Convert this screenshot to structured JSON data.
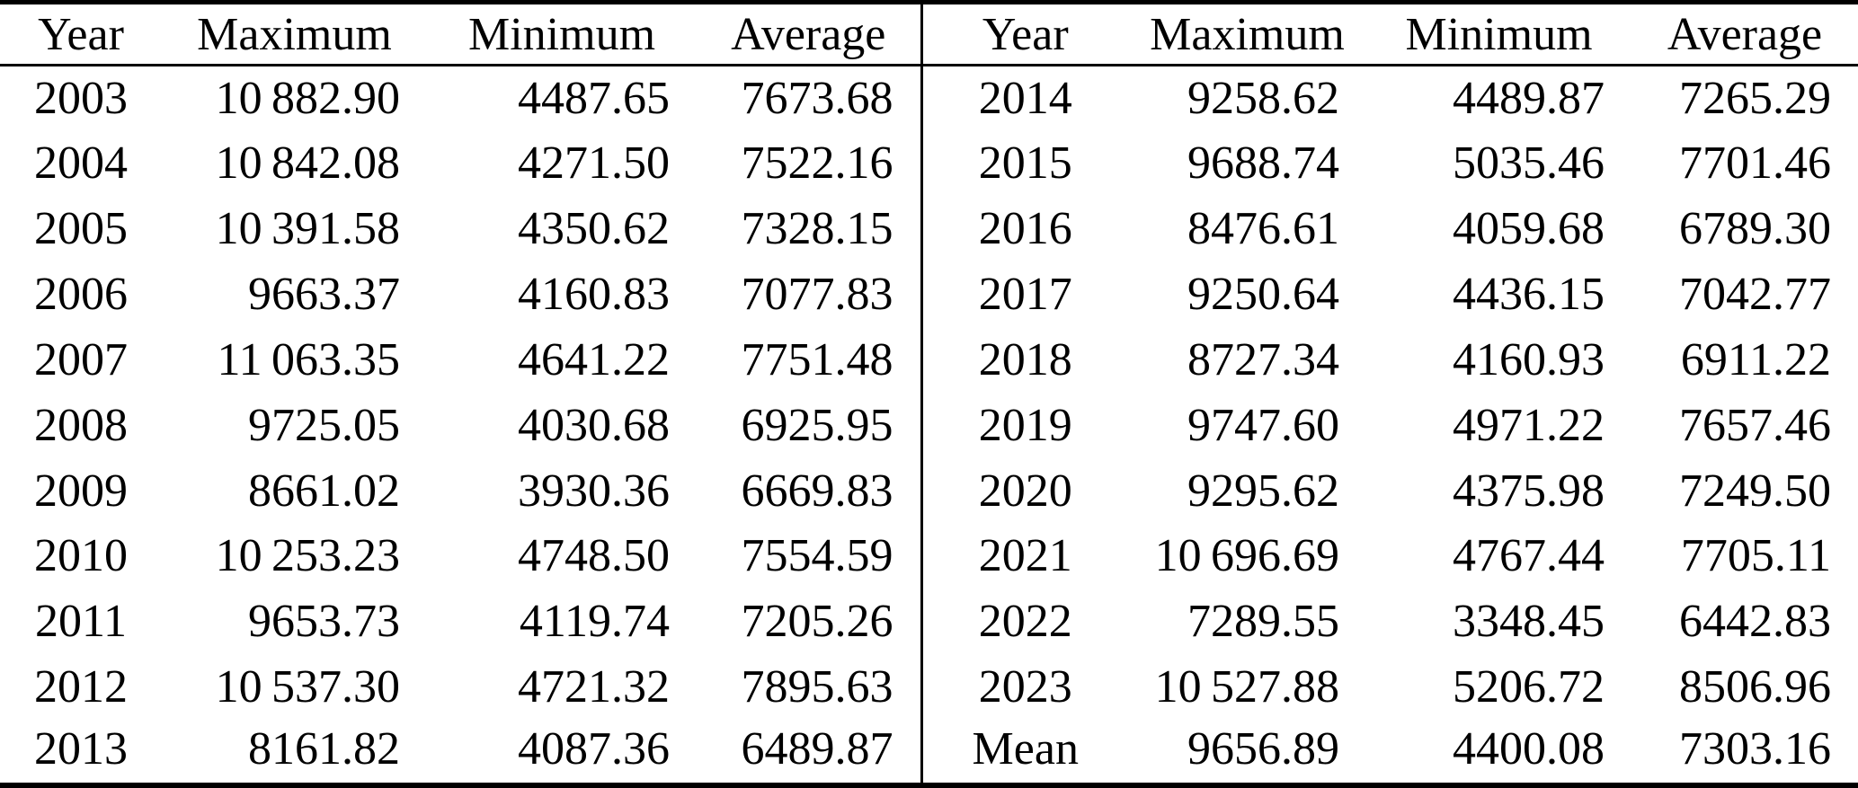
{
  "page": {
    "background": "#ffffff",
    "text_color": "#000000",
    "rule_color": "#000000"
  },
  "table": {
    "header": [
      "Year",
      "Maximum",
      "Minimum",
      "Average",
      "Year",
      "Maximum",
      "Minimum",
      "Average"
    ],
    "rows": [
      [
        "2003",
        "10 882.90",
        "4487.65",
        "7673.68",
        "2014",
        "9258.62",
        "4489.87",
        "7265.29"
      ],
      [
        "2004",
        "10 842.08",
        "4271.50",
        "7522.16",
        "2015",
        "9688.74",
        "5035.46",
        "7701.46"
      ],
      [
        "2005",
        "10 391.58",
        "4350.62",
        "7328.15",
        "2016",
        "8476.61",
        "4059.68",
        "6789.30"
      ],
      [
        "2006",
        "9663.37",
        "4160.83",
        "7077.83",
        "2017",
        "9250.64",
        "4436.15",
        "7042.77"
      ],
      [
        "2007",
        "11 063.35",
        "4641.22",
        "7751.48",
        "2018",
        "8727.34",
        "4160.93",
        "6911.22"
      ],
      [
        "2008",
        "9725.05",
        "4030.68",
        "6925.95",
        "2019",
        "9747.60",
        "4971.22",
        "7657.46"
      ],
      [
        "2009",
        "8661.02",
        "3930.36",
        "6669.83",
        "2020",
        "9295.62",
        "4375.98",
        "7249.50"
      ],
      [
        "2010",
        "10 253.23",
        "4748.50",
        "7554.59",
        "2021",
        "10 696.69",
        "4767.44",
        "7705.11"
      ],
      [
        "2011",
        "9653.73",
        "4119.74",
        "7205.26",
        "2022",
        "7289.55",
        "3348.45",
        "6442.83"
      ],
      [
        "2012",
        "10 537.30",
        "4721.32",
        "7895.63",
        "2023",
        "10 527.88",
        "5206.72",
        "8506.96"
      ],
      [
        "2013",
        "8161.82",
        "4087.36",
        "6489.87",
        "Mean",
        "9656.89",
        "4400.08",
        "7303.16"
      ]
    ]
  }
}
